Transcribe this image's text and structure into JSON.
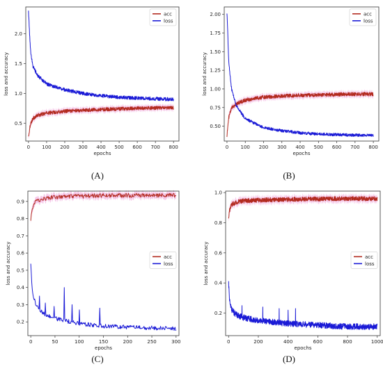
{
  "chart_data": [
    {
      "id": "A",
      "type": "line",
      "panel_label": "(A)",
      "xlabel": "epochs",
      "ylabel": "loss and accuracy",
      "xlim": [
        -15,
        830
      ],
      "ylim": [
        0.2,
        2.45
      ],
      "xticks": [
        0,
        100,
        200,
        300,
        400,
        500,
        600,
        700,
        800
      ],
      "yticks": [
        0.5,
        1.0,
        1.5,
        2.0
      ],
      "ytick_labels": [
        "0.5",
        "1.0",
        "1.5",
        "2.0"
      ],
      "legend_position": "top-right",
      "n_points": 800,
      "series": [
        {
          "name": "acc",
          "color": "#b22a1e",
          "band_color": "#f3b6e2",
          "x": [
            0,
            10,
            25,
            50,
            100,
            200,
            300,
            400,
            500,
            600,
            700,
            800
          ],
          "values": [
            0.27,
            0.48,
            0.58,
            0.63,
            0.67,
            0.7,
            0.72,
            0.73,
            0.74,
            0.75,
            0.755,
            0.76
          ],
          "noise": 0.03
        },
        {
          "name": "loss",
          "color": "#1a1ad6",
          "band_color": null,
          "x": [
            0,
            10,
            25,
            50,
            100,
            200,
            300,
            400,
            500,
            600,
            700,
            800
          ],
          "values": [
            2.38,
            1.75,
            1.45,
            1.3,
            1.16,
            1.06,
            1.0,
            0.96,
            0.935,
            0.92,
            0.91,
            0.9
          ],
          "noise": 0.03
        }
      ]
    },
    {
      "id": "B",
      "type": "line",
      "panel_label": "(B)",
      "xlabel": "epochs",
      "ylabel": "loss and accuracy",
      "xlim": [
        -15,
        830
      ],
      "ylim": [
        0.3,
        2.1
      ],
      "xticks": [
        0,
        100,
        200,
        300,
        400,
        500,
        600,
        700,
        800
      ],
      "yticks": [
        0.5,
        0.75,
        1.0,
        1.25,
        1.5,
        1.75,
        2.0
      ],
      "ytick_labels": [
        "0.50",
        "0.75",
        "1.00",
        "1.25",
        "1.50",
        "1.75",
        "2.00"
      ],
      "legend_position": "top-right",
      "n_points": 800,
      "series": [
        {
          "name": "acc",
          "color": "#b22a1e",
          "band_color": "#f3b6e2",
          "x": [
            0,
            10,
            25,
            50,
            100,
            200,
            300,
            400,
            500,
            600,
            700,
            800
          ],
          "values": [
            0.38,
            0.62,
            0.74,
            0.8,
            0.85,
            0.89,
            0.905,
            0.915,
            0.92,
            0.925,
            0.93,
            0.93
          ],
          "noise": 0.025
        },
        {
          "name": "loss",
          "color": "#1a1ad6",
          "band_color": null,
          "x": [
            0,
            10,
            25,
            50,
            100,
            200,
            300,
            400,
            500,
            600,
            700,
            800
          ],
          "values": [
            2.03,
            1.35,
            1.0,
            0.78,
            0.6,
            0.48,
            0.44,
            0.41,
            0.395,
            0.385,
            0.38,
            0.375
          ],
          "noise": 0.02
        }
      ]
    },
    {
      "id": "C",
      "type": "line",
      "panel_label": "(C)",
      "xlabel": "epochs",
      "ylabel": "loss and accuracy",
      "xlim": [
        -6,
        306
      ],
      "ylim": [
        0.12,
        0.96
      ],
      "xticks": [
        0,
        50,
        100,
        150,
        200,
        250,
        300
      ],
      "yticks": [
        0.2,
        0.3,
        0.4,
        0.5,
        0.6,
        0.7,
        0.8,
        0.9
      ],
      "ytick_labels": [
        "0.2",
        "0.3",
        "0.4",
        "0.5",
        "0.6",
        "0.7",
        "0.8",
        "0.9"
      ],
      "legend_position": "center-right",
      "n_points": 300,
      "series": [
        {
          "name": "acc",
          "color": "#b22a1e",
          "band_color": "#f3b6e2",
          "x": [
            0,
            3,
            10,
            25,
            50,
            100,
            150,
            200,
            250,
            300
          ],
          "values": [
            0.79,
            0.86,
            0.9,
            0.915,
            0.925,
            0.93,
            0.935,
            0.935,
            0.935,
            0.935
          ],
          "noise": 0.012
        },
        {
          "name": "loss",
          "color": "#1a1ad6",
          "band_color": null,
          "x": [
            0,
            3,
            10,
            25,
            50,
            100,
            150,
            200,
            250,
            300
          ],
          "values": [
            0.54,
            0.38,
            0.3,
            0.25,
            0.22,
            0.19,
            0.175,
            0.17,
            0.165,
            0.16
          ],
          "noise": 0.012,
          "spikes": [
            [
              18,
              0.35
            ],
            [
              30,
              0.31
            ],
            [
              48,
              0.29
            ],
            [
              69,
              0.4
            ],
            [
              85,
              0.3
            ],
            [
              100,
              0.27
            ],
            [
              142,
              0.28
            ]
          ]
        }
      ]
    },
    {
      "id": "D",
      "type": "line",
      "panel_label": "(D)",
      "xlabel": "epochs",
      "ylabel": "loss and accuracy",
      "xlim": [
        -20,
        1020
      ],
      "ylim": [
        0.05,
        1.01
      ],
      "xticks": [
        0,
        200,
        400,
        600,
        800,
        1000
      ],
      "yticks": [
        0.2,
        0.4,
        0.6,
        0.8,
        1.0
      ],
      "ytick_labels": [
        "0.2",
        "0.4",
        "0.6",
        "0.8",
        "1.0"
      ],
      "legend_position": "center-right",
      "n_points": 1000,
      "series": [
        {
          "name": "acc",
          "color": "#b22a1e",
          "band_color": "#f3b6e2",
          "x": [
            0,
            5,
            20,
            50,
            100,
            200,
            400,
            600,
            800,
            1000
          ],
          "values": [
            0.82,
            0.88,
            0.92,
            0.935,
            0.945,
            0.95,
            0.955,
            0.958,
            0.96,
            0.96
          ],
          "noise": 0.015
        },
        {
          "name": "loss",
          "color": "#1a1ad6",
          "band_color": null,
          "x": [
            0,
            5,
            20,
            50,
            100,
            200,
            400,
            600,
            800,
            1000
          ],
          "values": [
            0.4,
            0.3,
            0.22,
            0.19,
            0.17,
            0.15,
            0.13,
            0.12,
            0.11,
            0.11
          ],
          "noise": 0.02,
          "spikes": [
            [
              90,
              0.25
            ],
            [
              230,
              0.24
            ],
            [
              340,
              0.23
            ],
            [
              400,
              0.22
            ],
            [
              450,
              0.23
            ]
          ]
        }
      ]
    }
  ]
}
